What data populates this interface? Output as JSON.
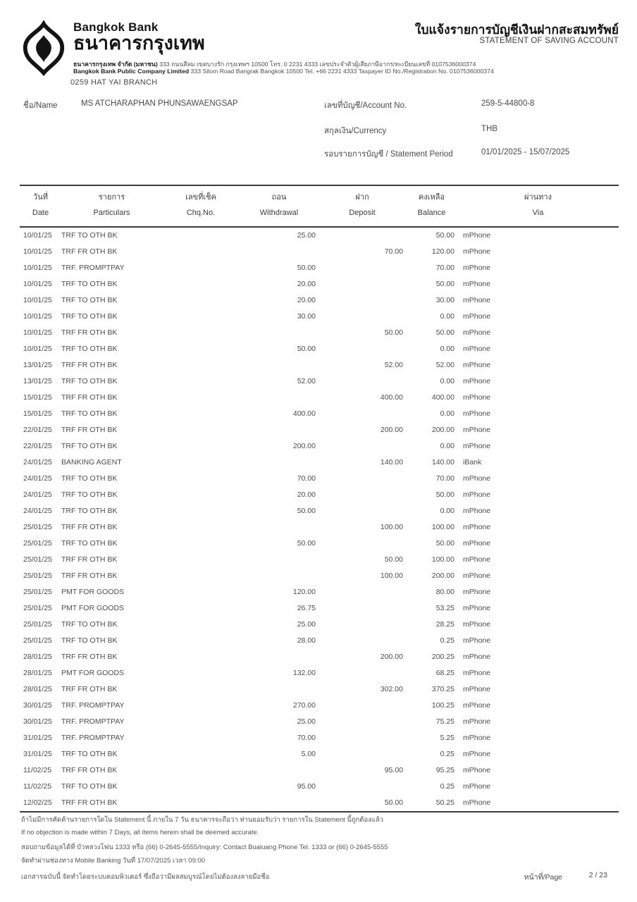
{
  "header": {
    "bank_name_en": "Bangkok Bank",
    "bank_name_th": "ธนาคารกรุงเทพ",
    "address_th_bold": "ธนาคารกรุงเทพ จำกัด (มหาชน)",
    "address_th_rest": " 333 ถนนสีลม เขตบางรัก กรุงเทพฯ 10500 โทร. 0 2231 4333 เลขประจำตัวผู้เสียภาษีอากร/ทะเบียนเลขที่ 0107536000374",
    "address_en_bold": "Bangkok Bank Public Company Limited",
    "address_en_rest": " 333 Silom Road Bangrak Bangkok 10500 Tel. +66 2231 4333 Taxpayer ID No./Registration No. 0107536000374",
    "branch": "0259 HAT YAI  BRANCH",
    "title_th": "ใบแจ้งรายการบัญชีเงินฝากสะสมทรัพย์",
    "title_en": "STATEMENT OF SAVING ACCOUNT"
  },
  "account": {
    "name_label": "ชื่อ/Name",
    "name_value": "MS ATCHARAPHAN PHUNSAWAENGSAP",
    "account_no_label": "เลขที่บัญชี/Account No.",
    "account_no_value": "259-5-44800-8",
    "currency_label": "สกุลเงิน/Currency",
    "currency_value": "THB",
    "period_label": "รอบรายการบัญชี / Statement Period",
    "period_value": "01/01/2025 - 15/07/2025"
  },
  "table": {
    "headers": [
      {
        "th": "วันที่",
        "en": "Date"
      },
      {
        "th": "รายการ",
        "en": "Particulars"
      },
      {
        "th": "เลขที่เช็ค",
        "en": "Chq.No."
      },
      {
        "th": "ถอน",
        "en": "Withdrawal"
      },
      {
        "th": "ฝาก",
        "en": "Deposit"
      },
      {
        "th": "คงเหลือ",
        "en": "Balance"
      },
      {
        "th": "ผ่านทาง",
        "en": "Via"
      }
    ],
    "rows": [
      [
        "10/01/25",
        "TRF TO OTH BK",
        "",
        "25.00",
        "",
        "50.00",
        "mPhone"
      ],
      [
        "10/01/25",
        "TRF FR OTH BK",
        "",
        "",
        "70.00",
        "120.00",
        "mPhone"
      ],
      [
        "10/01/25",
        "TRF. PROMPTPAY",
        "",
        "50.00",
        "",
        "70.00",
        "mPhone"
      ],
      [
        "10/01/25",
        "TRF TO OTH BK",
        "",
        "20.00",
        "",
        "50.00",
        "mPhone"
      ],
      [
        "10/01/25",
        "TRF TO OTH BK",
        "",
        "20.00",
        "",
        "30.00",
        "mPhone"
      ],
      [
        "10/01/25",
        "TRF TO OTH BK",
        "",
        "30.00",
        "",
        "0.00",
        "mPhone"
      ],
      [
        "10/01/25",
        "TRF FR OTH BK",
        "",
        "",
        "50.00",
        "50.00",
        "mPhone"
      ],
      [
        "10/01/25",
        "TRF TO OTH BK",
        "",
        "50.00",
        "",
        "0.00",
        "mPhone"
      ],
      [
        "13/01/25",
        "TRF FR OTH BK",
        "",
        "",
        "52.00",
        "52.00",
        "mPhone"
      ],
      [
        "13/01/25",
        "TRF TO OTH BK",
        "",
        "52.00",
        "",
        "0.00",
        "mPhone"
      ],
      [
        "15/01/25",
        "TRF FR OTH BK",
        "",
        "",
        "400.00",
        "400.00",
        "mPhone"
      ],
      [
        "15/01/25",
        "TRF TO OTH BK",
        "",
        "400.00",
        "",
        "0.00",
        "mPhone"
      ],
      [
        "22/01/25",
        "TRF FR OTH BK",
        "",
        "",
        "200.00",
        "200.00",
        "mPhone"
      ],
      [
        "22/01/25",
        "TRF TO OTH BK",
        "",
        "200.00",
        "",
        "0.00",
        "mPhone"
      ],
      [
        "24/01/25",
        "BANKING AGENT",
        "",
        "",
        "140.00",
        "140.00",
        "iBank"
      ],
      [
        "24/01/25",
        "TRF TO OTH BK",
        "",
        "70.00",
        "",
        "70.00",
        "mPhone"
      ],
      [
        "24/01/25",
        "TRF TO OTH BK",
        "",
        "20.00",
        "",
        "50.00",
        "mPhone"
      ],
      [
        "24/01/25",
        "TRF TO OTH BK",
        "",
        "50.00",
        "",
        "0.00",
        "mPhone"
      ],
      [
        "25/01/25",
        "TRF FR OTH BK",
        "",
        "",
        "100.00",
        "100.00",
        "mPhone"
      ],
      [
        "25/01/25",
        "TRF TO OTH BK",
        "",
        "50.00",
        "",
        "50.00",
        "mPhone"
      ],
      [
        "25/01/25",
        "TRF FR OTH BK",
        "",
        "",
        "50.00",
        "100.00",
        "mPhone"
      ],
      [
        "25/01/25",
        "TRF FR OTH BK",
        "",
        "",
        "100.00",
        "200.00",
        "mPhone"
      ],
      [
        "25/01/25",
        "PMT FOR GOODS",
        "",
        "120.00",
        "",
        "80.00",
        "mPhone"
      ],
      [
        "25/01/25",
        "PMT FOR GOODS",
        "",
        "26.75",
        "",
        "53.25",
        "mPhone"
      ],
      [
        "25/01/25",
        "TRF TO OTH BK",
        "",
        "25.00",
        "",
        "28.25",
        "mPhone"
      ],
      [
        "25/01/25",
        "TRF TO OTH BK",
        "",
        "28.00",
        "",
        "0.25",
        "mPhone"
      ],
      [
        "28/01/25",
        "TRF FR OTH BK",
        "",
        "",
        "200.00",
        "200.25",
        "mPhone"
      ],
      [
        "28/01/25",
        "PMT FOR GOODS",
        "",
        "132.00",
        "",
        "68.25",
        "mPhone"
      ],
      [
        "28/01/25",
        "TRF FR OTH BK",
        "",
        "",
        "302.00",
        "370.25",
        "mPhone"
      ],
      [
        "30/01/25",
        "TRF. PROMPTPAY",
        "",
        "270.00",
        "",
        "100.25",
        "mPhone"
      ],
      [
        "30/01/25",
        "TRF. PROMPTPAY",
        "",
        "25.00",
        "",
        "75.25",
        "mPhone"
      ],
      [
        "31/01/25",
        "TRF. PROMPTPAY",
        "",
        "70.00",
        "",
        "5.25",
        "mPhone"
      ],
      [
        "31/01/25",
        "TRF TO OTH BK",
        "",
        "5.00",
        "",
        "0.25",
        "mPhone"
      ],
      [
        "11/02/25",
        "TRF FR OTH BK",
        "",
        "",
        "95.00",
        "95.25",
        "mPhone"
      ],
      [
        "11/02/25",
        "TRF TO OTH BK",
        "",
        "95.00",
        "",
        "0.25",
        "mPhone"
      ],
      [
        "12/02/25",
        "TRF FR OTH BK",
        "",
        "",
        "50.00",
        "50.25",
        "mPhone"
      ]
    ]
  },
  "footer": {
    "notes": [
      "ถ้าไม่มีการคัดค้านรายการใดใน Statement นี้ ภายใน 7 วัน ธนาคารจะถือว่า ท่านยอมรับว่า รายการใน Statement นี้ถูกต้องแล้ว",
      "If no objection is made within 7 Days, all items herein shall be deemed accurate.",
      "สอบถามข้อมูลได้ที่ บัวหลวงโฟน 1333 หรือ (66) 0-2645-5555/Inquiry: Contact Bualuang Phone Tel. 1333 or (66) 0-2645-5555",
      "จัดทำผ่านช่องทาง Mobile Banking วันที่ 17/07/2025 เวลา 09:00",
      "เอกสารฉบับนี้ จัดทำโดยระบบคอมพิวเตอร์ ซึ่งถือว่ามีผลสมบูรณ์โดยไม่ต้องลงลายมือชื่อ"
    ],
    "page_label": "หน้าที่/Page",
    "page_value": "2 / 23"
  },
  "colors": {
    "ink": "#141414",
    "text": "#4a4a4a",
    "rule": "#3c3c3c"
  }
}
